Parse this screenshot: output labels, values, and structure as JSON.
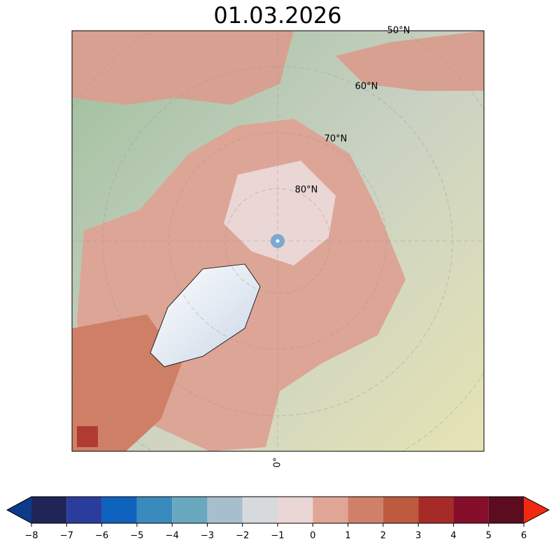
{
  "title": "01.03.2026",
  "map": {
    "latitude_labels": [
      "50°N",
      "60°N",
      "70°N",
      "80°N"
    ],
    "longitude_label": "0°"
  },
  "colorbar": {
    "xlim": [
      -8,
      6
    ],
    "ticks": [
      {
        "value": -8,
        "label": "−8"
      },
      {
        "value": -7,
        "label": "−7"
      },
      {
        "value": -6,
        "label": "−6"
      },
      {
        "value": -5,
        "label": "−5"
      },
      {
        "value": -4,
        "label": "−4"
      },
      {
        "value": -3,
        "label": "−3"
      },
      {
        "value": -2,
        "label": "−2"
      },
      {
        "value": -1,
        "label": "−1"
      },
      0,
      1,
      2,
      3,
      4,
      5,
      6
    ],
    "colors": [
      "#1f2557",
      "#2b3d9c",
      "#0f62bd",
      "#3a8bbd",
      "#6aa8c0",
      "#a7bfcc",
      "#d6dadd",
      "#ead6d4",
      "#dfa595",
      "#d08068",
      "#be5a3e",
      "#a62b27",
      "#850f2a",
      "#5b0d1f"
    ],
    "under_color": "#0d3a8a",
    "over_color": "#f02a10"
  }
}
